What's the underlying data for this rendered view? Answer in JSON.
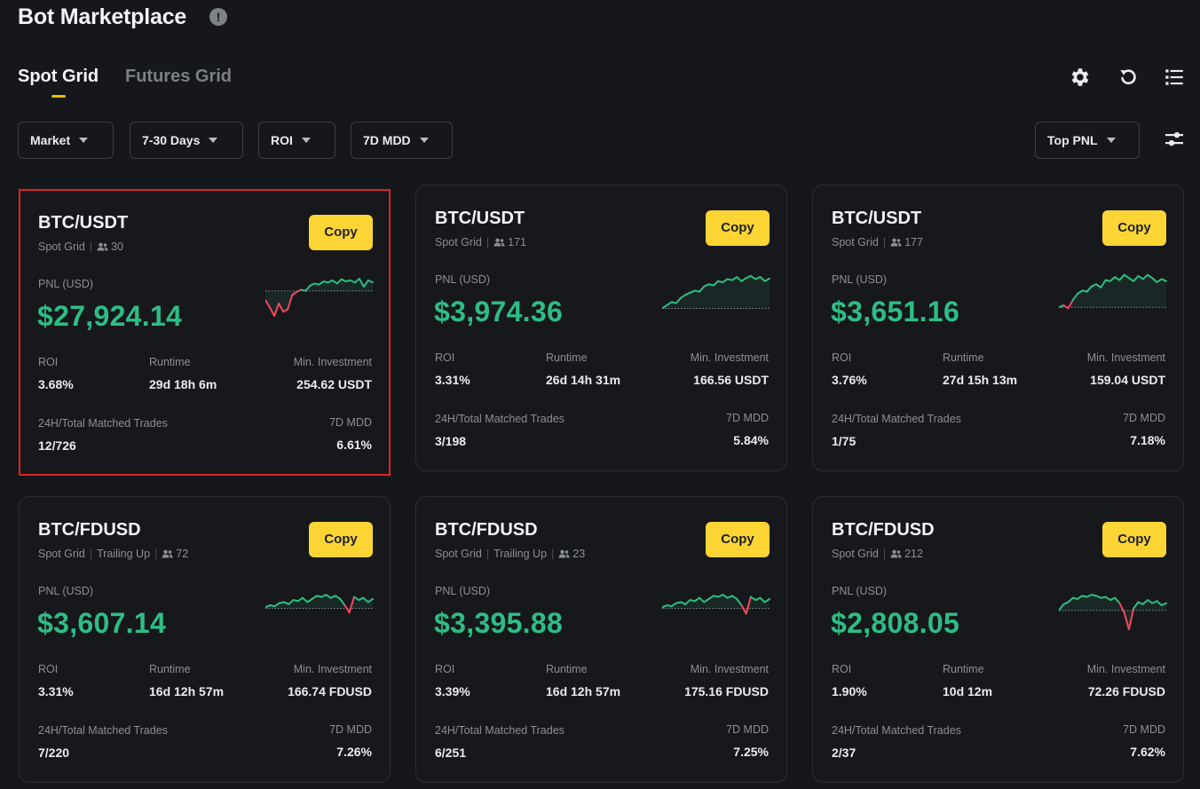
{
  "page": {
    "title": "Bot Marketplace"
  },
  "tabs": [
    {
      "label": "Spot Grid"
    },
    {
      "label": "Futures Grid"
    }
  ],
  "filters": [
    {
      "label": "Market"
    },
    {
      "label": "7-30 Days"
    },
    {
      "label": "ROI"
    },
    {
      "label": "7D MDD"
    }
  ],
  "sort": {
    "label": "Top PNL"
  },
  "card_labels": {
    "pnl": "PNL (USD)",
    "roi": "ROI",
    "runtime": "Runtime",
    "min_investment": "Min. Investment",
    "trades": "24H/Total Matched Trades",
    "mdd": "7D MDD",
    "copy": "Copy"
  },
  "cards": [
    {
      "pair": "BTC/USDT",
      "tags": [
        "Spot Grid"
      ],
      "users": "30",
      "pnl": "$27,924.14",
      "roi": "3.68%",
      "runtime": "29d 18h 6m",
      "min_investment": "254.62 USDT",
      "trades": "12/726",
      "mdd": "6.61%",
      "spark": [
        0.52,
        0.38,
        0.22,
        0.46,
        0.3,
        0.35,
        0.62,
        0.68,
        0.72,
        0.7,
        0.8,
        0.84,
        0.82,
        0.88,
        0.86,
        0.9,
        0.84,
        0.92,
        0.88,
        0.9,
        0.86,
        0.93,
        0.78,
        0.9,
        0.86
      ],
      "spark_baseline": 0.7
    },
    {
      "pair": "BTC/USDT",
      "tags": [
        "Spot Grid"
      ],
      "users": "171",
      "pnl": "$3,974.36",
      "roi": "3.31%",
      "runtime": "26d 14h 31m",
      "min_investment": "166.56 USDT",
      "trades": "3/198",
      "mdd": "5.84%",
      "spark": [
        0.28,
        0.34,
        0.4,
        0.38,
        0.48,
        0.54,
        0.58,
        0.62,
        0.6,
        0.7,
        0.74,
        0.72,
        0.8,
        0.78,
        0.84,
        0.82,
        0.88,
        0.8,
        0.86,
        0.9,
        0.84,
        0.88,
        0.8,
        0.85
      ],
      "spark_baseline": 0.28
    },
    {
      "pair": "BTC/USDT",
      "tags": [
        "Spot Grid"
      ],
      "users": "177",
      "pnl": "$3,651.16",
      "roi": "3.76%",
      "runtime": "27d 15h 13m",
      "min_investment": "159.04 USDT",
      "trades": "1/75",
      "mdd": "7.18%",
      "spark": [
        0.3,
        0.34,
        0.28,
        0.44,
        0.56,
        0.62,
        0.6,
        0.7,
        0.74,
        0.68,
        0.82,
        0.8,
        0.88,
        0.82,
        0.92,
        0.86,
        0.8,
        0.9,
        0.84,
        0.92,
        0.86,
        0.78,
        0.84,
        0.8
      ],
      "spark_baseline": 0.3
    },
    {
      "pair": "BTC/FDUSD",
      "tags": [
        "Spot Grid",
        "Trailing Up"
      ],
      "users": "72",
      "pnl": "$3,607.14",
      "roi": "3.31%",
      "runtime": "16d 12h 57m",
      "min_investment": "166.74 FDUSD",
      "trades": "7/220",
      "mdd": "7.26%",
      "spark": [
        0.52,
        0.56,
        0.54,
        0.6,
        0.62,
        0.58,
        0.66,
        0.64,
        0.7,
        0.62,
        0.68,
        0.74,
        0.72,
        0.76,
        0.7,
        0.74,
        0.68,
        0.56,
        0.42,
        0.72,
        0.66,
        0.7,
        0.62,
        0.68
      ],
      "spark_baseline": 0.5
    },
    {
      "pair": "BTC/FDUSD",
      "tags": [
        "Spot Grid",
        "Trailing Up"
      ],
      "users": "23",
      "pnl": "$3,395.88",
      "roi": "3.39%",
      "runtime": "16d 12h 57m",
      "min_investment": "175.16 FDUSD",
      "trades": "6/251",
      "mdd": "7.25%",
      "spark": [
        0.52,
        0.56,
        0.54,
        0.6,
        0.62,
        0.58,
        0.66,
        0.64,
        0.7,
        0.62,
        0.68,
        0.74,
        0.72,
        0.76,
        0.7,
        0.74,
        0.68,
        0.56,
        0.4,
        0.72,
        0.66,
        0.7,
        0.62,
        0.68
      ],
      "spark_baseline": 0.5
    },
    {
      "pair": "BTC/FDUSD",
      "tags": [
        "Spot Grid"
      ],
      "users": "212",
      "pnl": "$2,808.05",
      "roi": "1.90%",
      "runtime": "10d 12m",
      "min_investment": "72.26 FDUSD",
      "trades": "2/37",
      "mdd": "7.62%",
      "spark": [
        0.46,
        0.58,
        0.62,
        0.7,
        0.68,
        0.74,
        0.72,
        0.76,
        0.74,
        0.7,
        0.72,
        0.66,
        0.7,
        0.6,
        0.42,
        0.1,
        0.5,
        0.62,
        0.58,
        0.66,
        0.6,
        0.64,
        0.56,
        0.6
      ],
      "spark_baseline": 0.46
    }
  ],
  "colors": {
    "up": "#2ebd85",
    "down": "#f6465d",
    "accent": "#fcd535",
    "selected_border": "#e0232b"
  },
  "icons": [
    "info-icon",
    "gear-icon",
    "refresh-icon",
    "list-icon",
    "users-icon",
    "sliders-icon"
  ]
}
